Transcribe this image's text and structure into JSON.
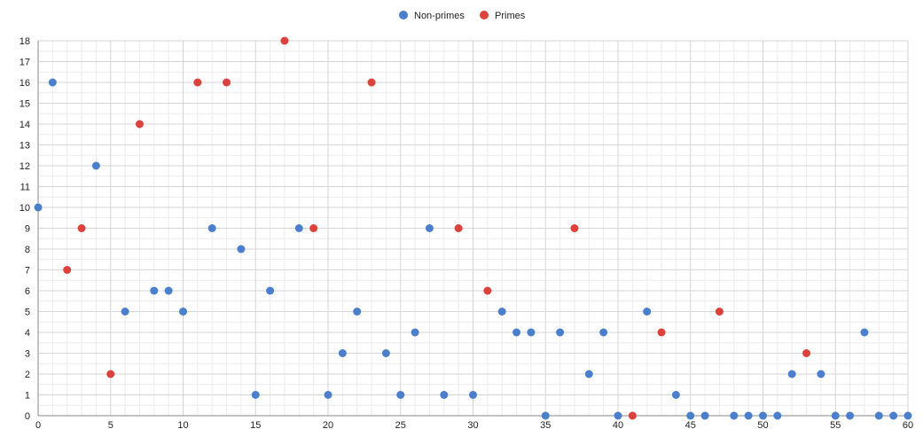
{
  "chart_data": {
    "type": "scatter",
    "title": "",
    "xlabel": "",
    "ylabel": "",
    "xlim": [
      0,
      60
    ],
    "ylim": [
      0,
      18
    ],
    "x_ticks": [
      0,
      5,
      10,
      15,
      20,
      25,
      30,
      35,
      40,
      45,
      50,
      55,
      60
    ],
    "y_ticks": [
      0,
      1,
      2,
      3,
      4,
      5,
      6,
      7,
      8,
      9,
      10,
      11,
      12,
      13,
      14,
      15,
      16,
      17,
      18
    ],
    "grid": true,
    "legend_position": "top-center",
    "series": [
      {
        "name": "Non-primes",
        "color": "#4a7fcf",
        "points": [
          [
            0,
            10
          ],
          [
            1,
            16
          ],
          [
            4,
            12
          ],
          [
            6,
            5
          ],
          [
            8,
            6
          ],
          [
            9,
            6
          ],
          [
            10,
            5
          ],
          [
            12,
            9
          ],
          [
            14,
            8
          ],
          [
            15,
            1
          ],
          [
            16,
            6
          ],
          [
            18,
            9
          ],
          [
            20,
            1
          ],
          [
            21,
            3
          ],
          [
            22,
            5
          ],
          [
            24,
            3
          ],
          [
            25,
            1
          ],
          [
            26,
            4
          ],
          [
            27,
            9
          ],
          [
            28,
            1
          ],
          [
            30,
            1
          ],
          [
            32,
            5
          ],
          [
            33,
            4
          ],
          [
            34,
            4
          ],
          [
            35,
            0
          ],
          [
            36,
            4
          ],
          [
            38,
            2
          ],
          [
            39,
            4
          ],
          [
            40,
            0
          ],
          [
            42,
            5
          ],
          [
            44,
            1
          ],
          [
            45,
            0
          ],
          [
            46,
            0
          ],
          [
            48,
            0
          ],
          [
            49,
            0
          ],
          [
            50,
            0
          ],
          [
            51,
            0
          ],
          [
            52,
            2
          ],
          [
            54,
            2
          ],
          [
            55,
            0
          ],
          [
            56,
            0
          ],
          [
            57,
            4
          ],
          [
            58,
            0
          ],
          [
            59,
            0
          ],
          [
            60,
            0
          ]
        ]
      },
      {
        "name": "Primes",
        "color": "#e0403a",
        "points": [
          [
            2,
            7
          ],
          [
            3,
            9
          ],
          [
            5,
            2
          ],
          [
            7,
            14
          ],
          [
            11,
            16
          ],
          [
            13,
            16
          ],
          [
            17,
            18
          ],
          [
            19,
            9
          ],
          [
            23,
            16
          ],
          [
            29,
            9
          ],
          [
            31,
            6
          ],
          [
            37,
            9
          ],
          [
            41,
            0
          ],
          [
            43,
            4
          ],
          [
            47,
            5
          ],
          [
            53,
            3
          ]
        ]
      }
    ]
  }
}
